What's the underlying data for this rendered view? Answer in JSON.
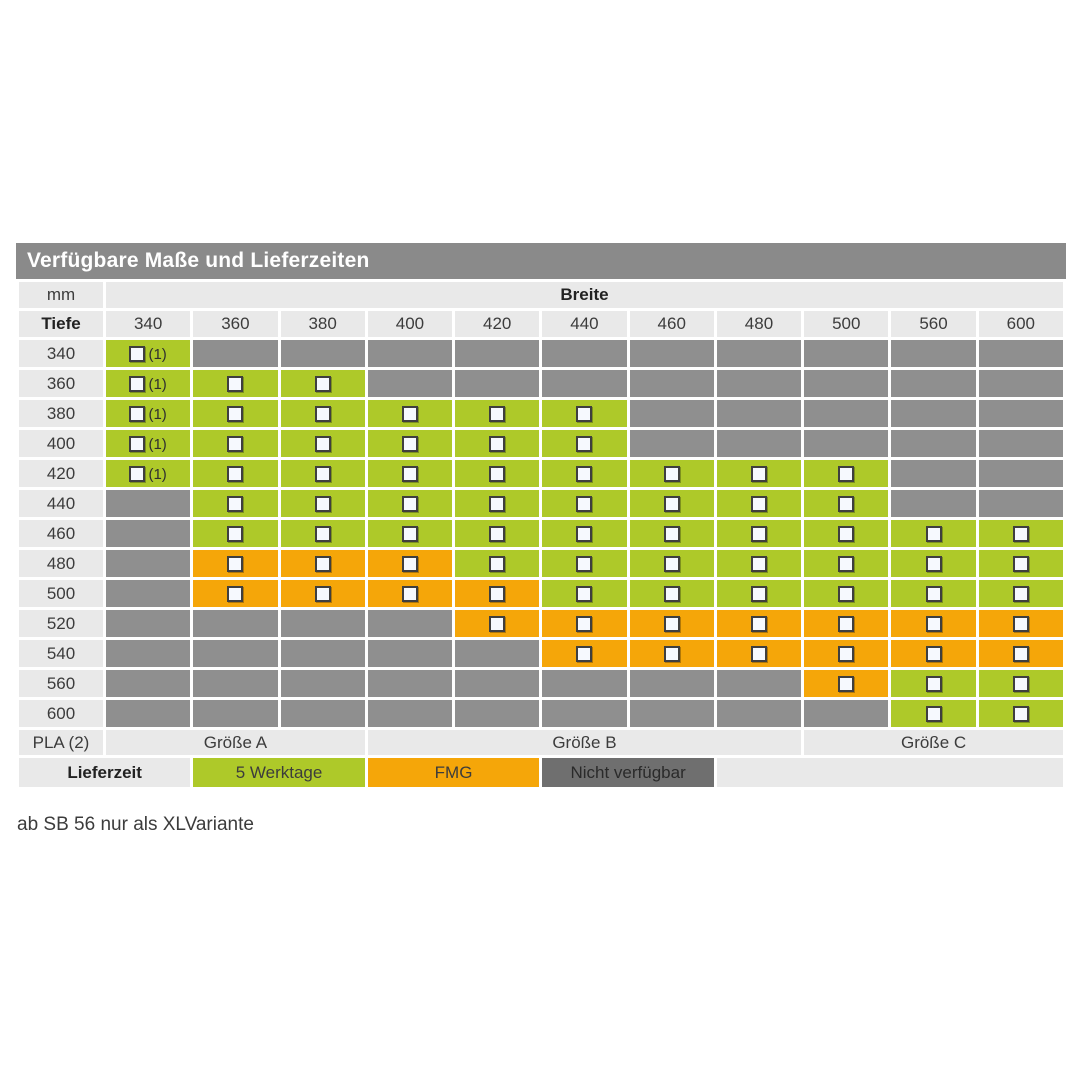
{
  "title": "Verfügbare Maße und Lieferzeiten",
  "footnote": "ab SB 56 nur als XLVariante",
  "colors": {
    "available_green": "#aec929",
    "fmg_orange": "#f5a609",
    "unavailable_gray": "#8f8f8f",
    "legend_dark_gray": "#6f6f6f",
    "title_bar_gray": "#8a8a8a",
    "label_cell_gray": "#e9e9e9"
  },
  "chart_data": {
    "type": "table",
    "title": "Verfügbare Maße und Lieferzeiten",
    "unit_label": "mm",
    "breite_label": "Breite",
    "tiefe_label": "Tiefe",
    "columns": [
      "340",
      "360",
      "380",
      "400",
      "420",
      "440",
      "460",
      "480",
      "500",
      "560",
      "600"
    ],
    "cell_codes": {
      "g": "green = 5 Werktage (checkbox)",
      "g1": "green with checkbox and note (1)",
      "o": "orange = FMG (checkbox)",
      "x": "gray = Nicht verfügbar"
    },
    "note_marker": "(1)",
    "rows": [
      {
        "tiefe": "340",
        "cells": [
          "g1",
          "x",
          "x",
          "x",
          "x",
          "x",
          "x",
          "x",
          "x",
          "x",
          "x"
        ]
      },
      {
        "tiefe": "360",
        "cells": [
          "g1",
          "g",
          "g",
          "x",
          "x",
          "x",
          "x",
          "x",
          "x",
          "x",
          "x"
        ]
      },
      {
        "tiefe": "380",
        "cells": [
          "g1",
          "g",
          "g",
          "g",
          "g",
          "g",
          "x",
          "x",
          "x",
          "x",
          "x"
        ]
      },
      {
        "tiefe": "400",
        "cells": [
          "g1",
          "g",
          "g",
          "g",
          "g",
          "g",
          "x",
          "x",
          "x",
          "x",
          "x"
        ]
      },
      {
        "tiefe": "420",
        "cells": [
          "g1",
          "g",
          "g",
          "g",
          "g",
          "g",
          "g",
          "g",
          "g",
          "x",
          "x"
        ]
      },
      {
        "tiefe": "440",
        "cells": [
          "x",
          "g",
          "g",
          "g",
          "g",
          "g",
          "g",
          "g",
          "g",
          "x",
          "x"
        ]
      },
      {
        "tiefe": "460",
        "cells": [
          "x",
          "g",
          "g",
          "g",
          "g",
          "g",
          "g",
          "g",
          "g",
          "g",
          "g"
        ]
      },
      {
        "tiefe": "480",
        "cells": [
          "x",
          "o",
          "o",
          "o",
          "g",
          "g",
          "g",
          "g",
          "g",
          "g",
          "g"
        ]
      },
      {
        "tiefe": "500",
        "cells": [
          "x",
          "o",
          "o",
          "o",
          "o",
          "g",
          "g",
          "g",
          "g",
          "g",
          "g"
        ]
      },
      {
        "tiefe": "520",
        "cells": [
          "x",
          "x",
          "x",
          "x",
          "o",
          "o",
          "o",
          "o",
          "o",
          "o",
          "o"
        ]
      },
      {
        "tiefe": "540",
        "cells": [
          "x",
          "x",
          "x",
          "x",
          "x",
          "o",
          "o",
          "o",
          "o",
          "o",
          "o"
        ]
      },
      {
        "tiefe": "560",
        "cells": [
          "x",
          "x",
          "x",
          "x",
          "x",
          "x",
          "x",
          "x",
          "o",
          "g",
          "g"
        ]
      },
      {
        "tiefe": "600",
        "cells": [
          "x",
          "x",
          "x",
          "x",
          "x",
          "x",
          "x",
          "x",
          "x",
          "g",
          "g"
        ]
      }
    ],
    "pla": {
      "label": "PLA (2)",
      "groups": [
        {
          "label": "Größe A",
          "span": 3
        },
        {
          "label": "Größe B",
          "span": 5
        },
        {
          "label": "Größe C",
          "span": 3
        }
      ]
    },
    "legend": {
      "label": "Lieferzeit",
      "label_span": 2,
      "items": [
        {
          "label": "5 Werktage",
          "state": "green",
          "span": 2
        },
        {
          "label": "FMG",
          "state": "orange",
          "span": 2
        },
        {
          "label": "Nicht verfügbar",
          "state": "dark",
          "span": 2
        }
      ],
      "empty_span": 4
    }
  }
}
